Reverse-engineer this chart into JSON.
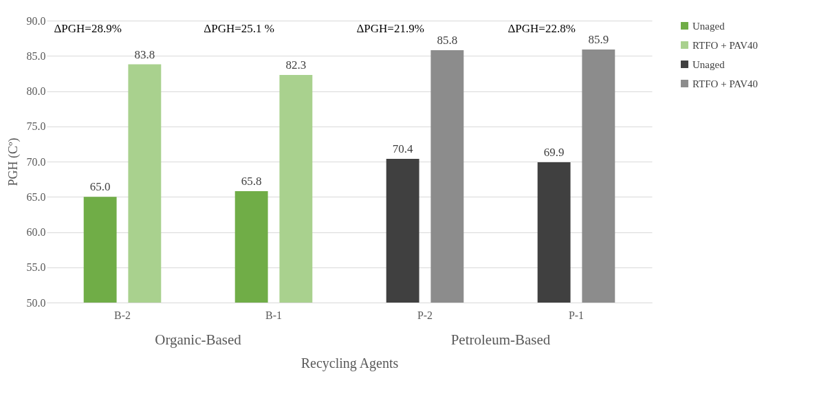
{
  "chart_data": {
    "type": "bar",
    "categories": [
      "B-2",
      "B-1",
      "P-2",
      "P-1"
    ],
    "series": [
      {
        "name": "Unaged",
        "color": "#70ad47",
        "values": [
          65.0,
          65.8,
          null,
          null
        ],
        "value_labels": [
          "65.0",
          "65.8",
          null,
          null
        ]
      },
      {
        "name": "RTFO + PAV40",
        "color": "#a9d18e",
        "values": [
          83.8,
          82.3,
          null,
          null
        ],
        "value_labels": [
          "83.8",
          "82.3",
          null,
          null
        ]
      },
      {
        "name": "Unaged",
        "color": "#404040",
        "values": [
          null,
          null,
          70.4,
          69.9
        ],
        "value_labels": [
          null,
          null,
          "70.4",
          "69.9"
        ]
      },
      {
        "name": "RTFO + PAV40",
        "color": "#8c8c8c",
        "values": [
          null,
          null,
          85.8,
          85.9
        ],
        "value_labels": [
          null,
          null,
          "85.8",
          "85.9"
        ]
      }
    ],
    "xlabel": "Recycling Agents",
    "ylabel": "PGH (Cº)",
    "ylim": [
      50,
      90
    ],
    "yticks": [
      {
        "value": 50,
        "label": "50.0"
      },
      {
        "value": 55,
        "label": "55.0"
      },
      {
        "value": 60,
        "label": "60.0"
      },
      {
        "value": 65,
        "label": "65.0"
      },
      {
        "value": 70,
        "label": "70.0"
      },
      {
        "value": 75,
        "label": "75.0"
      },
      {
        "value": 80,
        "label": "80.0"
      },
      {
        "value": 85,
        "label": "85.0"
      },
      {
        "value": 90,
        "label": "90.0"
      }
    ],
    "grid": "y",
    "legend": "right",
    "annotations": [
      "ΔPGH=28.9%",
      "ΔPGH=25.1 %",
      "ΔPGH=21.9%",
      "ΔPGH=22.8%",
      "Organic-Based",
      "Petroleum-Based"
    ]
  }
}
